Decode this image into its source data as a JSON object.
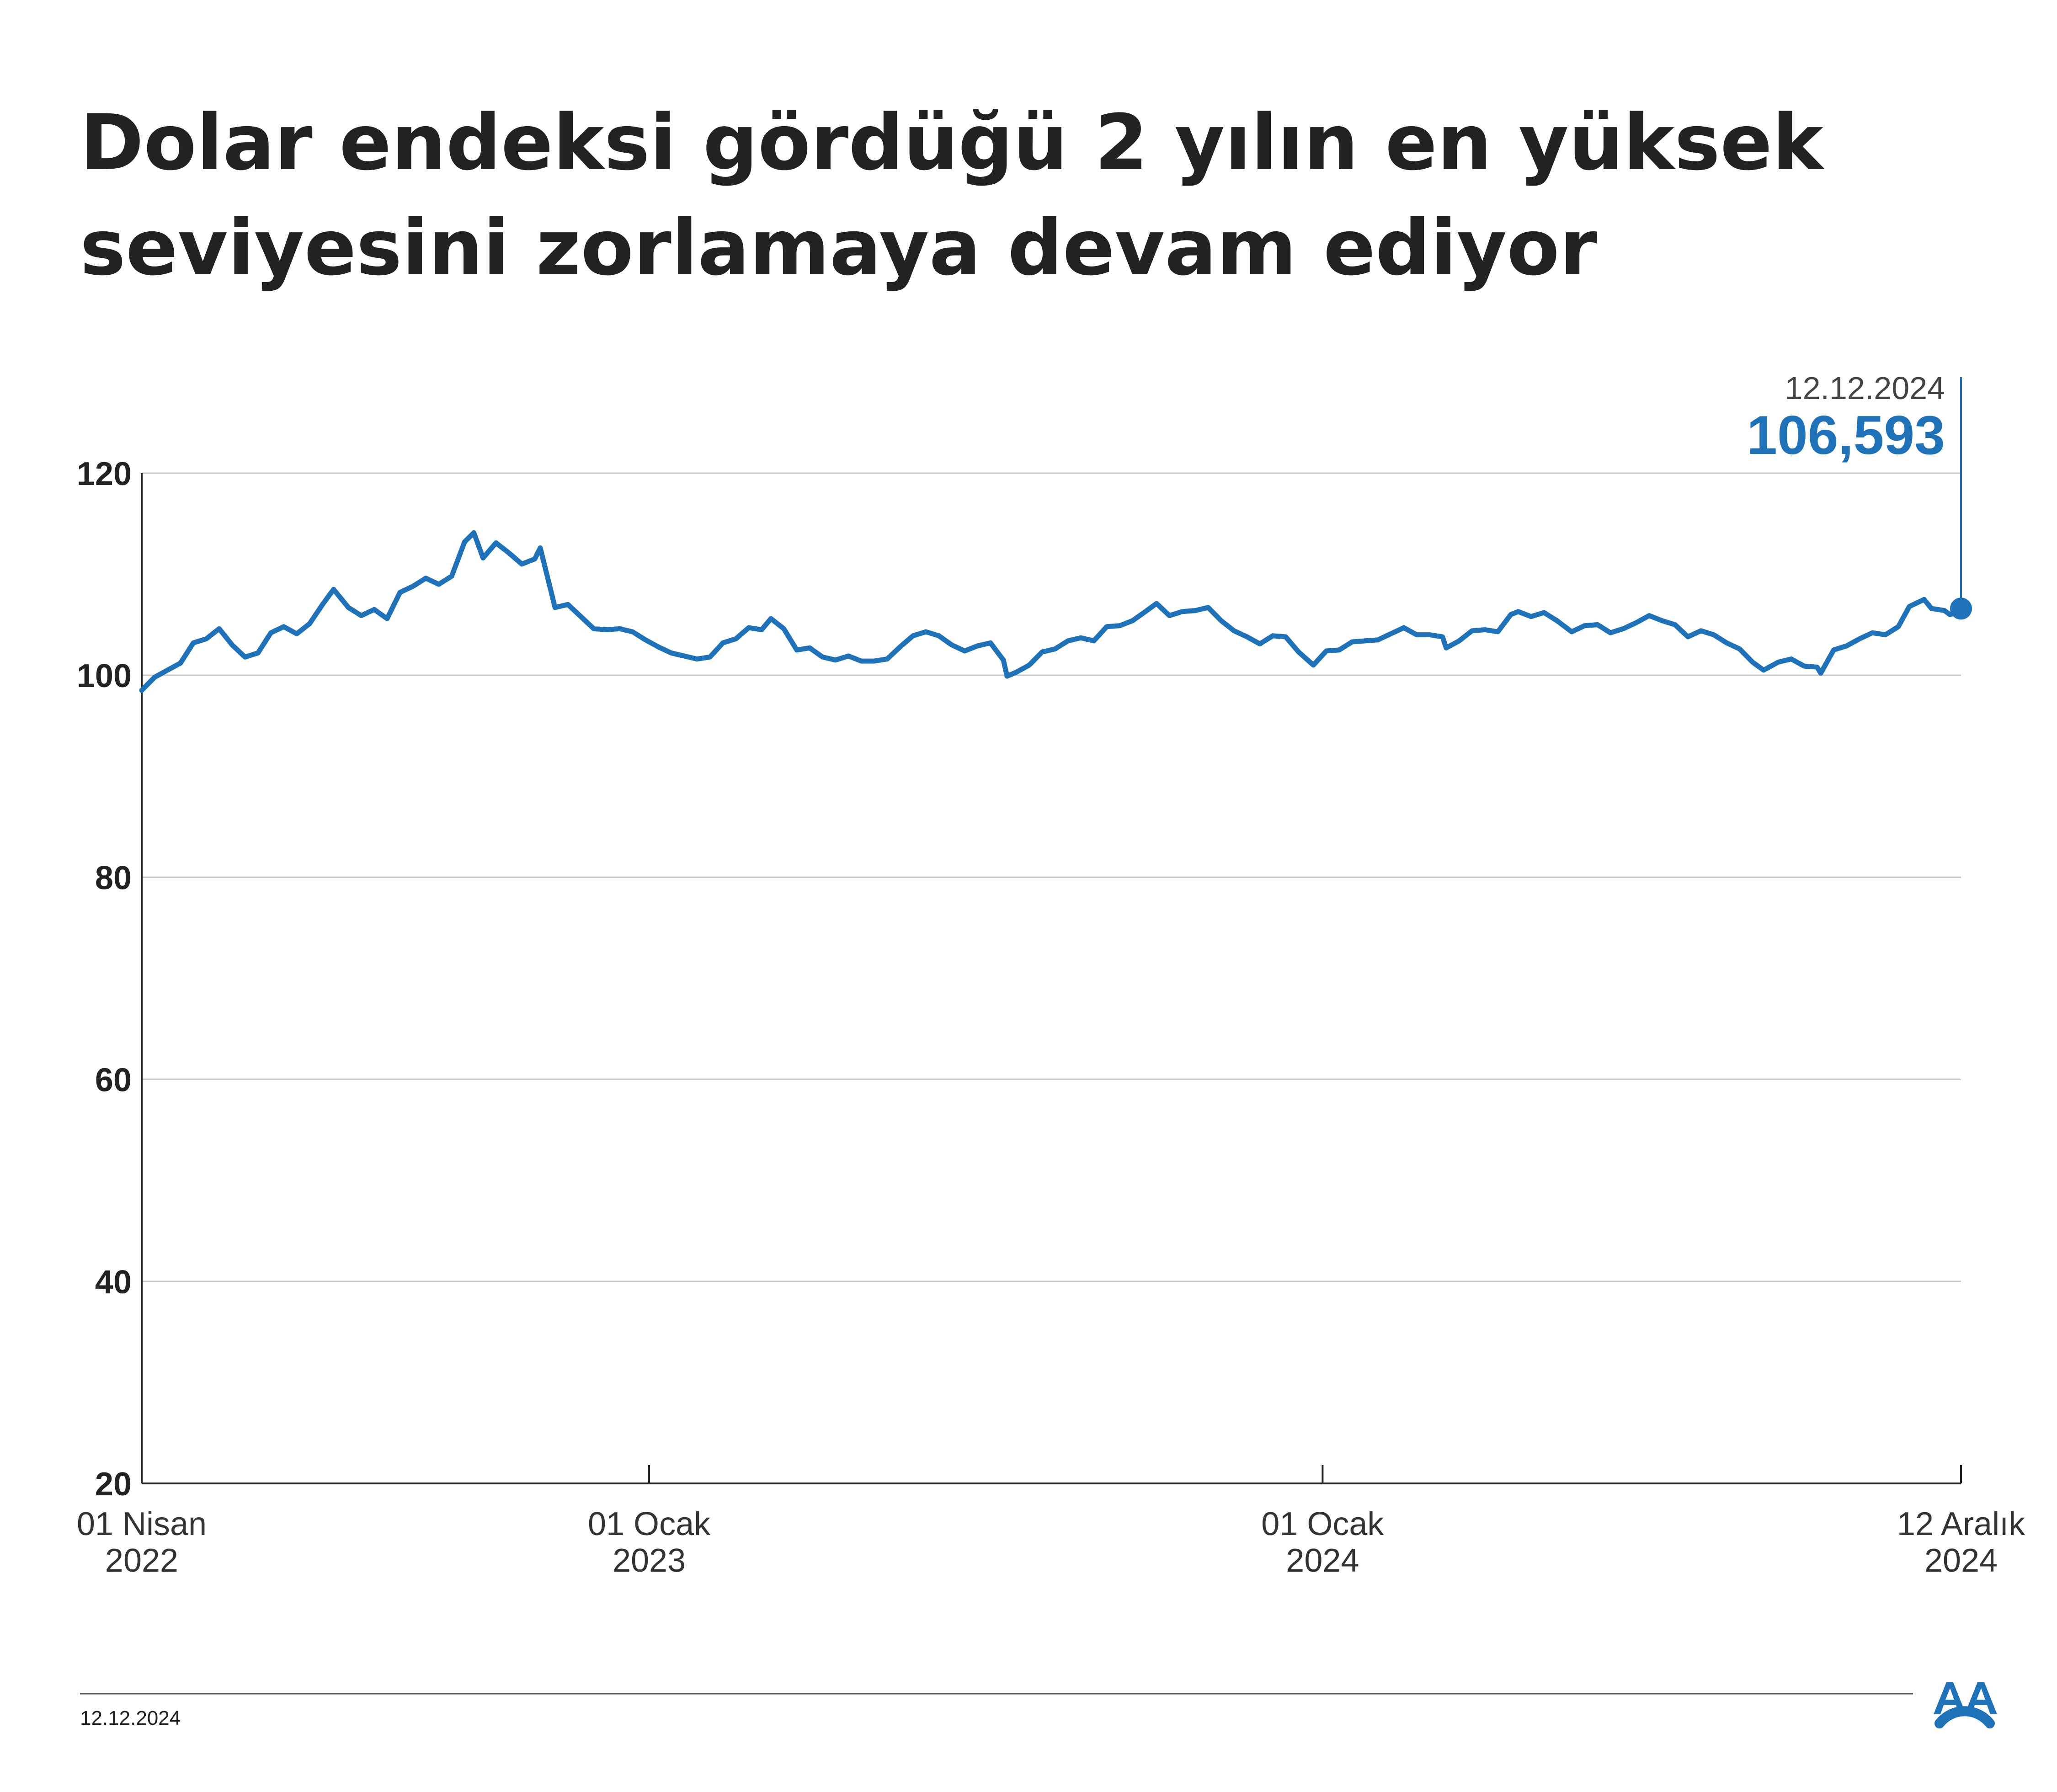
{
  "chart_data": {
    "type": "line",
    "title_lines": [
      "Dolar endeksi gördüğü 2 yılın en yüksek",
      "seviyesini zorlamaya devam ediyor"
    ],
    "xlabel": "",
    "ylabel": "",
    "ylim": [
      20,
      120
    ],
    "y_ticks": [
      {
        "value": 20,
        "label": "20"
      },
      {
        "value": 40,
        "label": "40"
      },
      {
        "value": 60,
        "label": "60"
      },
      {
        "value": 80,
        "label": "80"
      },
      {
        "value": 100,
        "label": "100"
      },
      {
        "value": 120,
        "label": "120"
      }
    ],
    "x_range": [
      "2022-04-01",
      "2024-12-12"
    ],
    "x_ticks": [
      {
        "date": "2022-04-01",
        "line1": "01 Nisan",
        "line2": "2022"
      },
      {
        "date": "2023-01-01",
        "line1": "01 Ocak",
        "line2": "2023"
      },
      {
        "date": "2024-01-01",
        "line1": "01 Ocak",
        "line2": "2024"
      },
      {
        "date": "2024-12-12",
        "line1": "12 Aralık",
        "line2": "2024"
      }
    ],
    "grid": true,
    "series": [
      {
        "color": "#1f72b8",
        "points": [
          [
            "2022-04-01",
            98.5
          ],
          [
            "2022-04-08",
            99.8
          ],
          [
            "2022-04-15",
            100.5
          ],
          [
            "2022-04-22",
            101.2
          ],
          [
            "2022-04-29",
            103.2
          ],
          [
            "2022-05-06",
            103.6
          ],
          [
            "2022-05-13",
            104.6
          ],
          [
            "2022-05-20",
            103.0
          ],
          [
            "2022-05-27",
            101.8
          ],
          [
            "2022-06-03",
            102.2
          ],
          [
            "2022-06-10",
            104.2
          ],
          [
            "2022-06-17",
            104.8
          ],
          [
            "2022-06-24",
            104.1
          ],
          [
            "2022-07-01",
            105.1
          ],
          [
            "2022-07-08",
            107.0
          ],
          [
            "2022-07-14",
            108.5
          ],
          [
            "2022-07-22",
            106.7
          ],
          [
            "2022-07-29",
            105.9
          ],
          [
            "2022-08-05",
            106.5
          ],
          [
            "2022-08-12",
            105.6
          ],
          [
            "2022-08-19",
            108.2
          ],
          [
            "2022-08-26",
            108.8
          ],
          [
            "2022-09-02",
            109.6
          ],
          [
            "2022-09-09",
            109.0
          ],
          [
            "2022-09-16",
            109.8
          ],
          [
            "2022-09-23",
            113.2
          ],
          [
            "2022-09-28",
            114.1
          ],
          [
            "2022-10-03",
            111.6
          ],
          [
            "2022-10-10",
            113.1
          ],
          [
            "2022-10-17",
            112.1
          ],
          [
            "2022-10-24",
            111.0
          ],
          [
            "2022-10-31",
            111.5
          ],
          [
            "2022-11-03",
            112.6
          ],
          [
            "2022-11-11",
            106.7
          ],
          [
            "2022-11-18",
            107.0
          ],
          [
            "2022-11-25",
            105.8
          ],
          [
            "2022-12-02",
            104.6
          ],
          [
            "2022-12-09",
            104.5
          ],
          [
            "2022-12-16",
            104.6
          ],
          [
            "2022-12-23",
            104.3
          ],
          [
            "2022-12-30",
            103.5
          ],
          [
            "2023-01-06",
            102.8
          ],
          [
            "2023-01-13",
            102.2
          ],
          [
            "2023-01-20",
            101.9
          ],
          [
            "2023-01-27",
            101.6
          ],
          [
            "2023-02-03",
            101.8
          ],
          [
            "2023-02-10",
            103.2
          ],
          [
            "2023-02-17",
            103.6
          ],
          [
            "2023-02-24",
            104.7
          ],
          [
            "2023-03-03",
            104.5
          ],
          [
            "2023-03-08",
            105.6
          ],
          [
            "2023-03-15",
            104.6
          ],
          [
            "2023-03-22",
            102.5
          ],
          [
            "2023-03-29",
            102.7
          ],
          [
            "2023-04-05",
            101.8
          ],
          [
            "2023-04-12",
            101.5
          ],
          [
            "2023-04-19",
            101.9
          ],
          [
            "2023-04-26",
            101.4
          ],
          [
            "2023-05-03",
            101.4
          ],
          [
            "2023-05-10",
            101.6
          ],
          [
            "2023-05-17",
            102.8
          ],
          [
            "2023-05-24",
            103.9
          ],
          [
            "2023-05-31",
            104.3
          ],
          [
            "2023-06-07",
            103.9
          ],
          [
            "2023-06-14",
            103.0
          ],
          [
            "2023-06-21",
            102.4
          ],
          [
            "2023-06-28",
            102.9
          ],
          [
            "2023-07-05",
            103.2
          ],
          [
            "2023-07-12",
            101.5
          ],
          [
            "2023-07-14",
            99.9
          ],
          [
            "2023-07-19",
            100.3
          ],
          [
            "2023-07-26",
            101.0
          ],
          [
            "2023-08-02",
            102.3
          ],
          [
            "2023-08-09",
            102.6
          ],
          [
            "2023-08-16",
            103.4
          ],
          [
            "2023-08-23",
            103.7
          ],
          [
            "2023-08-30",
            103.4
          ],
          [
            "2023-09-06",
            104.8
          ],
          [
            "2023-09-13",
            104.9
          ],
          [
            "2023-09-20",
            105.4
          ],
          [
            "2023-09-27",
            106.3
          ],
          [
            "2023-10-03",
            107.1
          ],
          [
            "2023-10-10",
            105.9
          ],
          [
            "2023-10-17",
            106.3
          ],
          [
            "2023-10-24",
            106.4
          ],
          [
            "2023-10-31",
            106.7
          ],
          [
            "2023-11-07",
            105.4
          ],
          [
            "2023-11-14",
            104.4
          ],
          [
            "2023-11-21",
            103.8
          ],
          [
            "2023-11-28",
            103.1
          ],
          [
            "2023-12-05",
            103.9
          ],
          [
            "2023-12-12",
            103.8
          ],
          [
            "2023-12-19",
            102.3
          ],
          [
            "2023-12-27",
            101.0
          ],
          [
            "2024-01-03",
            102.4
          ],
          [
            "2024-01-10",
            102.5
          ],
          [
            "2024-01-17",
            103.3
          ],
          [
            "2024-01-24",
            103.4
          ],
          [
            "2024-01-31",
            103.5
          ],
          [
            "2024-02-07",
            104.1
          ],
          [
            "2024-02-14",
            104.7
          ],
          [
            "2024-02-21",
            104.0
          ],
          [
            "2024-02-28",
            104.0
          ],
          [
            "2024-03-06",
            103.8
          ],
          [
            "2024-03-08",
            102.7
          ],
          [
            "2024-03-15",
            103.4
          ],
          [
            "2024-03-22",
            104.4
          ],
          [
            "2024-03-29",
            104.5
          ],
          [
            "2024-04-05",
            104.3
          ],
          [
            "2024-04-12",
            106.0
          ],
          [
            "2024-04-16",
            106.3
          ],
          [
            "2024-04-23",
            105.8
          ],
          [
            "2024-04-30",
            106.2
          ],
          [
            "2024-05-07",
            105.4
          ],
          [
            "2024-05-15",
            104.3
          ],
          [
            "2024-05-22",
            104.9
          ],
          [
            "2024-05-29",
            105.0
          ],
          [
            "2024-06-05",
            104.2
          ],
          [
            "2024-06-12",
            104.6
          ],
          [
            "2024-06-19",
            105.2
          ],
          [
            "2024-06-26",
            105.9
          ],
          [
            "2024-07-03",
            105.4
          ],
          [
            "2024-07-10",
            105.0
          ],
          [
            "2024-07-17",
            103.8
          ],
          [
            "2024-07-24",
            104.4
          ],
          [
            "2024-07-31",
            104.0
          ],
          [
            "2024-08-07",
            103.2
          ],
          [
            "2024-08-14",
            102.6
          ],
          [
            "2024-08-21",
            101.3
          ],
          [
            "2024-08-27",
            100.5
          ],
          [
            "2024-09-04",
            101.3
          ],
          [
            "2024-09-11",
            101.6
          ],
          [
            "2024-09-18",
            100.9
          ],
          [
            "2024-09-25",
            100.8
          ],
          [
            "2024-09-27",
            100.2
          ],
          [
            "2024-10-04",
            102.5
          ],
          [
            "2024-10-11",
            102.9
          ],
          [
            "2024-10-18",
            103.6
          ],
          [
            "2024-10-25",
            104.2
          ],
          [
            "2024-11-01",
            104.0
          ],
          [
            "2024-11-08",
            104.8
          ],
          [
            "2024-11-14",
            106.8
          ],
          [
            "2024-11-22",
            107.5
          ],
          [
            "2024-11-26",
            106.6
          ],
          [
            "2024-12-03",
            106.4
          ],
          [
            "2024-12-06",
            106.0
          ],
          [
            "2024-12-09",
            106.2
          ],
          [
            "2024-12-12",
            106.593
          ]
        ]
      }
    ],
    "last_point": {
      "date_label": "12.12.2024",
      "value_label": "106,593"
    }
  },
  "footer": {
    "date": "12.12.2024"
  },
  "logo": {
    "text": "AA"
  },
  "colors": {
    "line": "#1f72b8",
    "grid": "#c8c8c8",
    "axis": "#222222",
    "title": "#222222"
  }
}
